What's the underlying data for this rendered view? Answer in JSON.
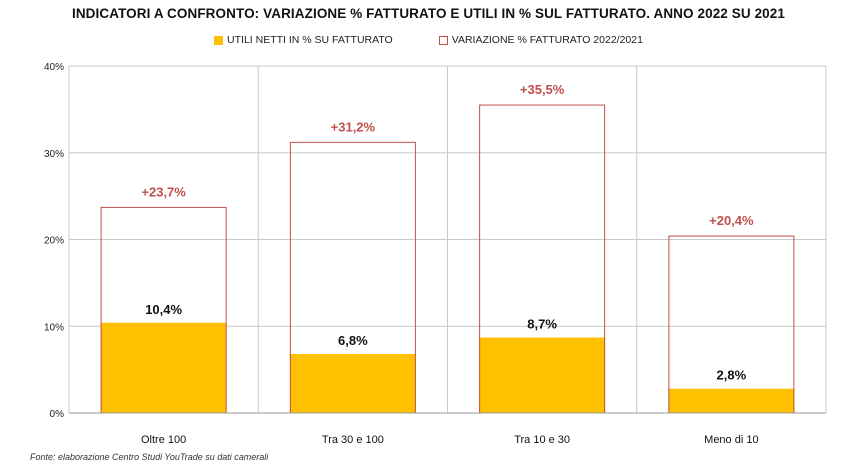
{
  "chart_data": {
    "type": "bar",
    "title": "INDICATORI A CONFRONTO: VARIAZIONE % FATTURATO E UTILI IN % SUL FATTURATO. ANNO 2022 SU 2021",
    "categories": [
      "Oltre 100",
      "Tra 30 e 100",
      "Tra 10 e 30",
      "Meno di 10"
    ],
    "series": [
      {
        "name": "UTILI NETTI IN % SU FATTURATO",
        "values": [
          10.4,
          6.8,
          8.7,
          2.8
        ],
        "labels": [
          "10,4%",
          "6,8%",
          "8,7%",
          "2,8%"
        ],
        "style": "filled",
        "color": "#FFC000",
        "label_color": "#111111"
      },
      {
        "name": "VARIAZIONE % FATTURATO 2022/2021",
        "values": [
          23.7,
          31.2,
          35.5,
          20.4
        ],
        "labels": [
          "+23,7%",
          "+31,2%",
          "+35,5%",
          "+20,4%"
        ],
        "style": "outline",
        "color": "#C0504D",
        "label_color": "#C0504D"
      }
    ],
    "ylim": [
      0,
      40
    ],
    "yticks": [
      0,
      10,
      20,
      30,
      40
    ],
    "ytick_labels": [
      "0%",
      "10%",
      "20%",
      "30%",
      "40%"
    ],
    "grid": true,
    "legend_position": "top-center",
    "xlabel": "",
    "ylabel": ""
  },
  "source": "Fonte: elaborazione Centro Studi YouTrade su dati camerali"
}
